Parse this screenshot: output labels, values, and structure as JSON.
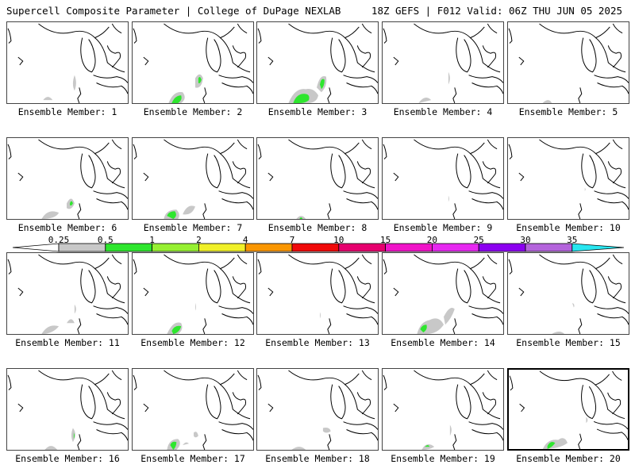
{
  "header": {
    "left_title": "Supercell Composite Parameter | College of DuPage NEXLAB",
    "right_title": "18Z GEFS | F012 Valid: 06Z THU JUN 05 2025"
  },
  "colorbar": {
    "ticks": [
      "0.25",
      "0.5",
      "1",
      "2",
      "4",
      "7",
      "10",
      "15",
      "20",
      "25",
      "30",
      "35"
    ],
    "colors": [
      "#c8c8c8",
      "#2ee62e",
      "#96f032",
      "#f0f028",
      "#fa9600",
      "#f00a0a",
      "#e6006e",
      "#f014c8",
      "#e628f0",
      "#8c00f0",
      "#b464dc",
      "#28e6f0"
    ]
  },
  "panels": [
    {
      "label": "Ensemble Member: 1"
    },
    {
      "label": "Ensemble Member: 2"
    },
    {
      "label": "Ensemble Member: 3"
    },
    {
      "label": "Ensemble Member: 4"
    },
    {
      "label": "Ensemble Member: 5"
    },
    {
      "label": "Ensemble Member: 6"
    },
    {
      "label": "Ensemble Member: 7"
    },
    {
      "label": "Ensemble Member: 8"
    },
    {
      "label": "Ensemble Member: 9"
    },
    {
      "label": "Ensemble Member: 10"
    },
    {
      "label": "Ensemble Member: 11"
    },
    {
      "label": "Ensemble Member: 12"
    },
    {
      "label": "Ensemble Member: 13"
    },
    {
      "label": "Ensemble Member: 14"
    },
    {
      "label": "Ensemble Member: 15"
    },
    {
      "label": "Ensemble Member: 16"
    },
    {
      "label": "Ensemble Member: 17"
    },
    {
      "label": "Ensemble Member: 18"
    },
    {
      "label": "Ensemble Member: 19"
    },
    {
      "label": "Ensemble Member: 20",
      "selected": true
    }
  ]
}
